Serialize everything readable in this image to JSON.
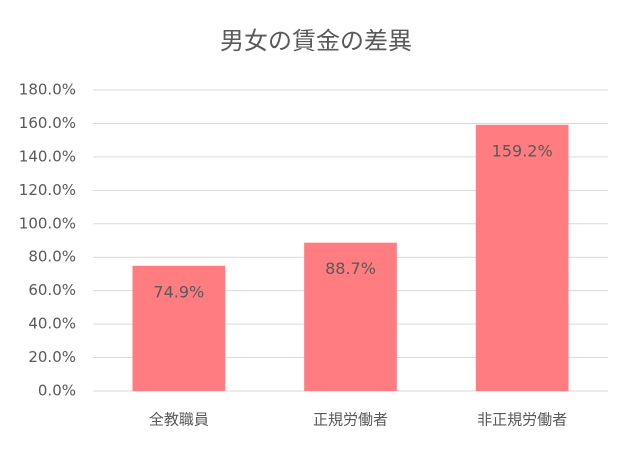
{
  "chart_data": {
    "type": "bar",
    "title": "男女の賃金の差異",
    "categories": [
      "全教職員",
      "正規労働者",
      "非正規労働者"
    ],
    "values": [
      74.9,
      88.7,
      159.2
    ],
    "value_labels": [
      "74.9%",
      "88.7%",
      "159.2%"
    ],
    "color": "#ff7c80",
    "ylim": [
      0,
      180
    ],
    "yticks": [
      {
        "value": 0,
        "label": "0.0%"
      },
      {
        "value": 20,
        "label": "20.0%"
      },
      {
        "value": 40,
        "label": "40.0%"
      },
      {
        "value": 60,
        "label": "60.0%"
      },
      {
        "value": 80,
        "label": "80.0%"
      },
      {
        "value": 100,
        "label": "100.0%"
      },
      {
        "value": 120,
        "label": "120.0%"
      },
      {
        "value": 140,
        "label": "140.0%"
      },
      {
        "value": 160,
        "label": "160.0%"
      },
      {
        "value": 180,
        "label": "180.0%"
      }
    ],
    "grid": true
  }
}
